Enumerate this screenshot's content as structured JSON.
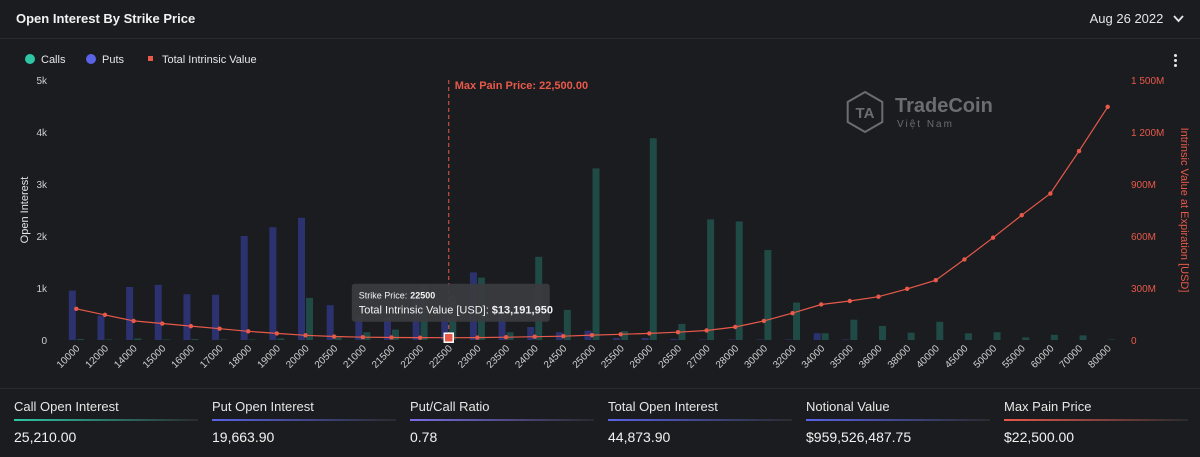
{
  "header": {
    "title": "Open Interest By Strike Price",
    "date": "Aug 26 2022",
    "date_icon": "chevron-down-icon",
    "menu_icon": "kebab-menu-icon"
  },
  "watermark": {
    "brand": "TradeCoin",
    "sub": "Việt Nam"
  },
  "legend": [
    {
      "label": "Calls",
      "color": "#2fc6a6",
      "shape": "circle"
    },
    {
      "label": "Puts",
      "color": "#5a63e6",
      "shape": "circle"
    },
    {
      "label": "Total Intrinsic Value",
      "color": "#e8594a",
      "shape": "square"
    }
  ],
  "max_pain_label": "Max Pain Price: 22,500.00",
  "tooltip": {
    "line1_label": "Strike Price:",
    "line1_value": "22500",
    "line2_label": "Total Intrinsic Value [USD]:",
    "line2_value": "$13,191,950"
  },
  "chart_data": {
    "type": "bar",
    "categories": [
      "10000",
      "12000",
      "14000",
      "15000",
      "16000",
      "17000",
      "18000",
      "19000",
      "20000",
      "20500",
      "21000",
      "21500",
      "22000",
      "22500",
      "23000",
      "23500",
      "24000",
      "24500",
      "25000",
      "25500",
      "26000",
      "26500",
      "27000",
      "28000",
      "30000",
      "32000",
      "34000",
      "35000",
      "36000",
      "38000",
      "40000",
      "45000",
      "50000",
      "55000",
      "60000",
      "70000",
      "80000"
    ],
    "series": [
      {
        "name": "Calls",
        "type": "bar",
        "axis": "left",
        "color": "#2fc6a6",
        "values": [
          20,
          10,
          30,
          10,
          20,
          10,
          10,
          30,
          810,
          50,
          150,
          200,
          1060,
          850,
          1200,
          150,
          1600,
          580,
          3300,
          170,
          3880,
          310,
          2320,
          2280,
          1730,
          720,
          130,
          390,
          270,
          140,
          350,
          130,
          150,
          50,
          100,
          90,
          10
        ]
      },
      {
        "name": "Puts",
        "type": "bar",
        "axis": "left",
        "color": "#5a63e6",
        "values": [
          950,
          470,
          1020,
          1060,
          880,
          870,
          2000,
          2170,
          2350,
          670,
          480,
          430,
          950,
          470,
          1300,
          660,
          250,
          150,
          180,
          40,
          40,
          20,
          10,
          10,
          10,
          10,
          130,
          10,
          0,
          0,
          0,
          0,
          0,
          0,
          0,
          0,
          0
        ]
      },
      {
        "name": "Total Intrinsic Value",
        "type": "line",
        "axis": "right",
        "color": "#e8594a",
        "values": [
          180000000,
          145000000,
          110000000,
          95000000,
          80000000,
          65000000,
          50000000,
          38000000,
          27000000,
          20000000,
          16000000,
          14500000,
          13600000,
          13191950,
          14000000,
          16000000,
          19000000,
          22000000,
          28000000,
          33000000,
          38000000,
          45000000,
          55000000,
          75000000,
          110000000,
          155000000,
          205000000,
          225000000,
          250000000,
          295000000,
          345000000,
          465000000,
          590000000,
          720000000,
          845000000,
          1090000000,
          1345000000
        ]
      }
    ],
    "max_pain_strike": "22500",
    "ylabel_left": "Open Interest",
    "ylabel_right": "Intrinsic Value at Expiration [USD]",
    "ylim_left": [
      0,
      5000
    ],
    "ylim_right": [
      0,
      1500000000
    ],
    "yticks_left": [
      "0",
      "1k",
      "2k",
      "3k",
      "4k",
      "5k"
    ],
    "yticks_right": [
      "0",
      "300M",
      "600M",
      "900M",
      "1 200M",
      "1 500M"
    ],
    "grid": false,
    "legend_position": "top-left"
  },
  "stats": [
    {
      "label": "Call Open Interest",
      "value": "25,210.00",
      "color": "#2fc6a6"
    },
    {
      "label": "Put Open Interest",
      "value": "19,663.90",
      "color": "#5a63e6"
    },
    {
      "label": "Put/Call Ratio",
      "value": "0.78",
      "color": "#7a6ee6"
    },
    {
      "label": "Total Open Interest",
      "value": "44,873.90",
      "color": "#5a63e6"
    },
    {
      "label": "Notional Value",
      "value": "$959,526,487.75",
      "color": "#5a63e6"
    },
    {
      "label": "Max Pain Price",
      "value": "$22,500.00",
      "color": "#e8594a"
    }
  ]
}
